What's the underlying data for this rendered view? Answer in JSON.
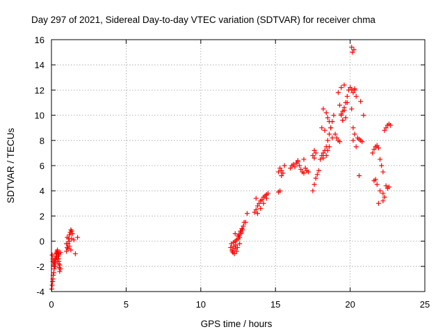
{
  "chart_data": {
    "type": "scatter",
    "title": "Day 297 of 2021, Sidereal Day-to-day VTEC variation (SDTVAR) for receiver chma",
    "xlabel": "GPS time / hours",
    "ylabel": "SDTVAR / TECUs",
    "xlim": [
      0,
      25
    ],
    "ylim": [
      -4,
      16
    ],
    "xticks": [
      0,
      5,
      10,
      15,
      20,
      25
    ],
    "yticks": [
      -4,
      -2,
      0,
      2,
      4,
      6,
      8,
      10,
      12,
      14,
      16
    ],
    "xtick_labels": [
      "0",
      "5",
      "10",
      "15",
      "20",
      "25"
    ],
    "ytick_labels": [
      "-4",
      "-2",
      "0",
      "2",
      "4",
      "6",
      "8",
      "10",
      "12",
      "14",
      "16"
    ],
    "grid": true,
    "marker": "+",
    "color": "#ff0000",
    "series": [
      {
        "name": "SDTVAR",
        "x": [
          0.02,
          0.05,
          0.08,
          0.1,
          0.12,
          0.15,
          0.18,
          0.2,
          0.22,
          0.25,
          0.28,
          0.3,
          0.32,
          0.35,
          0.38,
          0.4,
          0.42,
          0.45,
          0.48,
          0.5,
          0.52,
          0.55,
          0.1,
          0.15,
          0.2,
          0.3,
          0.4,
          0.45,
          0.5,
          0.55,
          0.6,
          0.05,
          0.1,
          0.2,
          0.25,
          0.35,
          0.4,
          0.5,
          0.6,
          1.0,
          1.05,
          1.1,
          1.15,
          1.2,
          1.25,
          1.3,
          1.35,
          1.4,
          1.1,
          1.2,
          1.3,
          1.0,
          1.05,
          1.2,
          1.35,
          1.5,
          1.6,
          1.75,
          12.0,
          12.05,
          12.1,
          12.15,
          12.2,
          12.25,
          12.3,
          12.35,
          12.4,
          12.45,
          12.5,
          12.55,
          12.6,
          12.65,
          12.7,
          12.75,
          12.8,
          12.85,
          12.9,
          12.2,
          12.3,
          12.4,
          12.5,
          12.6,
          12.7,
          13.0,
          13.1,
          12.1,
          12.3,
          13.6,
          13.7,
          13.8,
          13.9,
          14.0,
          14.1,
          14.2,
          14.3,
          14.4,
          14.5,
          13.8,
          14.0,
          14.2,
          14.4,
          13.7,
          15.2,
          15.3,
          15.4,
          15.5,
          15.6,
          15.3,
          15.2,
          15.4,
          16.0,
          16.1,
          16.2,
          16.3,
          16.4,
          16.5,
          16.6,
          16.7,
          16.8,
          16.9,
          17.0,
          17.1,
          17.2,
          16.5,
          16.9,
          17.5,
          17.6,
          17.7,
          17.8,
          17.9,
          17.6,
          17.7,
          17.5,
          17.6,
          18.0,
          18.1,
          18.2,
          18.3,
          18.4,
          18.5,
          18.6,
          18.7,
          18.8,
          18.9,
          18.2,
          18.4,
          18.5,
          18.6,
          18.7,
          18.3,
          18.1,
          18.5,
          18.4,
          18.6,
          18.2,
          18.8,
          19.0,
          19.1,
          19.2,
          19.3,
          19.4,
          19.5,
          19.6,
          19.7,
          19.8,
          19.9,
          19.2,
          19.4,
          19.6,
          19.8,
          19.3,
          19.5,
          19.7,
          19.6,
          19.4,
          19.5,
          20.0,
          20.1,
          20.2,
          20.3,
          20.4,
          20.1,
          20.2,
          20.3,
          20.2,
          20.4,
          20.5,
          20.6,
          20.7,
          20.8,
          20.1,
          20.25,
          20.15,
          20.7,
          20.9,
          20.6,
          20.3,
          21.5,
          21.6,
          21.7,
          21.8,
          21.9,
          22.0,
          22.1,
          22.2,
          21.6,
          21.8,
          22.0,
          22.2,
          21.9,
          21.7,
          22.3,
          22.4,
          22.5,
          22.6,
          22.7,
          22.4,
          22.5,
          22.6,
          22.3,
          22.2
        ],
        "y": [
          -3.8,
          -3.5,
          -3.2,
          -3.0,
          -2.7,
          -2.5,
          -2.2,
          -2.0,
          -1.8,
          -1.6,
          -1.4,
          -1.2,
          -1.0,
          -0.9,
          -0.8,
          -0.7,
          -0.9,
          -1.1,
          -1.4,
          -1.8,
          -2.1,
          -2.4,
          -1.6,
          -1.9,
          -1.5,
          -1.0,
          -0.8,
          -1.2,
          -1.6,
          -1.9,
          -2.2,
          -1.1,
          -1.4,
          -1.7,
          -2.0,
          -1.3,
          -1.6,
          -1.0,
          -0.9,
          -0.8,
          -0.5,
          -0.2,
          0.2,
          0.5,
          0.7,
          0.9,
          0.8,
          0.6,
          -0.6,
          -0.4,
          -0.7,
          -0.2,
          0.3,
          0.0,
          0.2,
          0.1,
          -1.0,
          0.3,
          -0.5,
          -0.2,
          -0.7,
          -0.9,
          -0.4,
          -1.0,
          -0.6,
          -0.3,
          0.1,
          -0.5,
          0.2,
          0.5,
          0.3,
          0.8,
          0.6,
          1.0,
          0.9,
          1.2,
          1.5,
          -0.1,
          0.0,
          -0.8,
          0.4,
          -0.2,
          0.7,
          1.5,
          2.2,
          -0.8,
          0.6,
          2.3,
          2.5,
          2.8,
          3.0,
          3.2,
          3.3,
          3.5,
          3.6,
          3.7,
          3.8,
          2.2,
          2.6,
          3.0,
          3.4,
          3.4,
          5.5,
          5.8,
          5.6,
          5.4,
          6.0,
          4.0,
          3.9,
          5.2,
          5.8,
          6.0,
          6.1,
          5.9,
          6.2,
          6.3,
          6.0,
          5.7,
          5.5,
          5.4,
          5.8,
          5.6,
          5.5,
          6.4,
          6.5,
          4.0,
          4.5,
          5.0,
          5.3,
          5.6,
          7.2,
          7.0,
          6.8,
          6.6,
          6.5,
          6.8,
          7.0,
          7.2,
          7.5,
          8.0,
          8.5,
          9.0,
          9.5,
          10.0,
          10.5,
          10.2,
          9.8,
          9.5,
          9.0,
          8.8,
          9.0,
          7.2,
          6.8,
          7.5,
          6.6,
          8.2,
          8.5,
          8.2,
          8.0,
          7.9,
          10.0,
          10.3,
          10.6,
          11.0,
          11.5,
          12.0,
          11.8,
          12.2,
          12.4,
          11.0,
          10.8,
          9.6,
          9.8,
          10.4,
          10.1,
          9.6,
          12.2,
          12.0,
          11.8,
          12.1,
          11.5,
          10.5,
          9.0,
          8.5,
          8.0,
          7.5,
          8.2,
          8.1,
          8.0,
          7.9,
          15.4,
          15.2,
          15.0,
          11.1,
          10.0,
          5.2,
          12.0,
          7.0,
          7.3,
          7.5,
          7.6,
          7.4,
          6.5,
          6.0,
          5.5,
          4.8,
          4.5,
          4.0,
          3.8,
          3.0,
          4.9,
          8.8,
          9.0,
          9.2,
          9.3,
          9.2,
          4.4,
          4.2,
          4.3,
          3.5,
          3.2
        ]
      }
    ]
  }
}
